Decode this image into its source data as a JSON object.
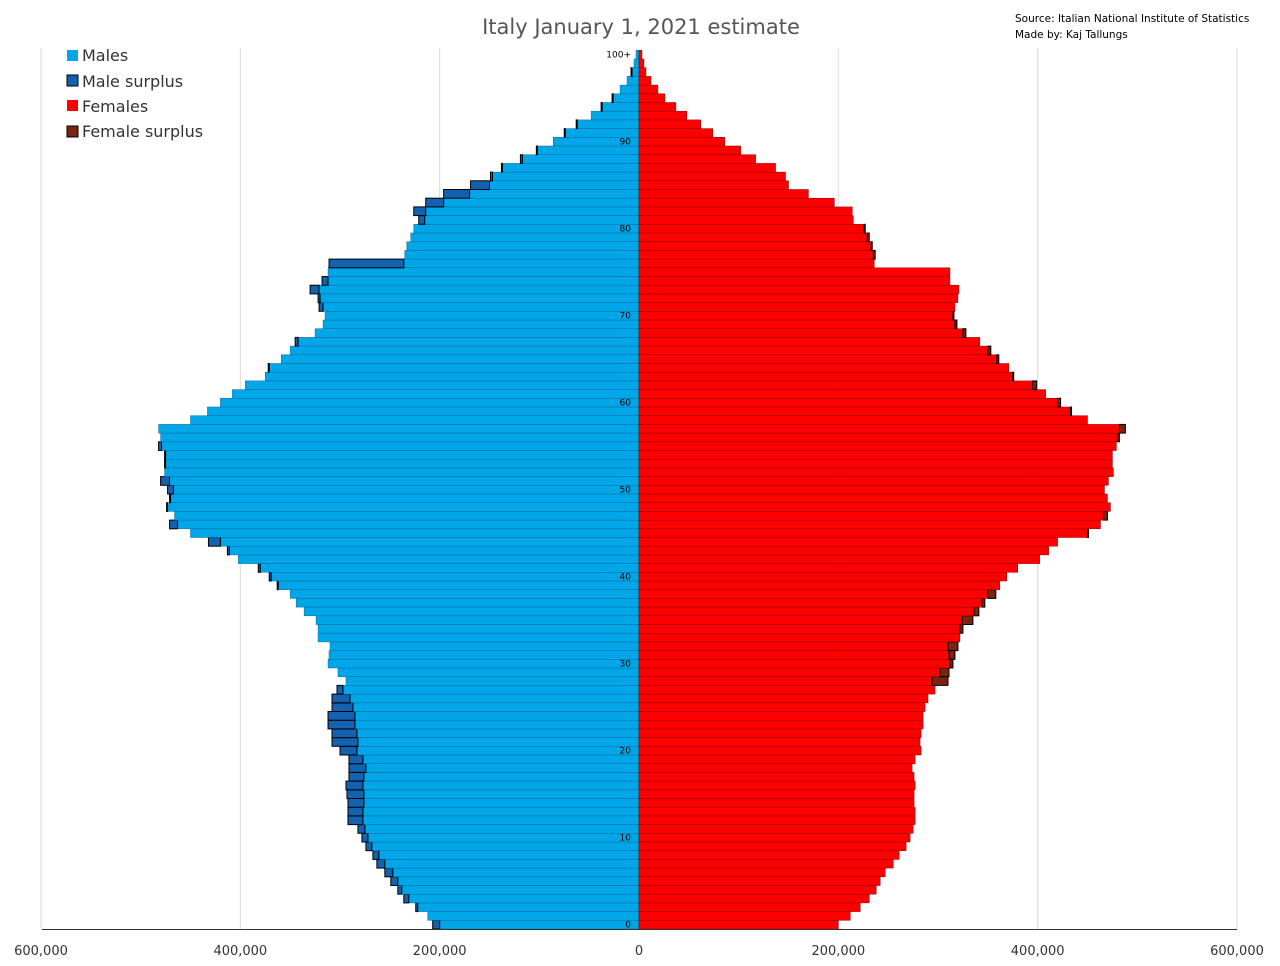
{
  "chart_data": {
    "type": "bar",
    "orientation": "horizontal-population-pyramid",
    "title": "Italy January 1, 2021 estimate",
    "source_line": "Source: Italian National Institute of Statistics",
    "author_line": "Made by: Kaj Tallungs",
    "legend": {
      "placement": "top-left",
      "items": [
        {
          "label": "Males",
          "color": "#00a6e8"
        },
        {
          "label": "Male surplus",
          "color": "#1262b0"
        },
        {
          "label": "Females",
          "color": "#ff0000"
        },
        {
          "label": "Female surplus",
          "color": "#7a2510"
        }
      ]
    },
    "x_ticks": [
      {
        "label": "600,000"
      },
      {
        "label": "400,000"
      },
      {
        "label": "200,000"
      },
      {
        "label": "0"
      },
      {
        "label": "200,000"
      },
      {
        "label": "400,000"
      },
      {
        "label": "600,000"
      }
    ],
    "x_tick_values": [
      -600000,
      -400000,
      -200000,
      0,
      200000,
      400000,
      600000
    ],
    "xlim": [
      -600000,
      600000
    ],
    "y_ticks": [
      {
        "label": "0",
        "age": 0
      },
      {
        "label": "10",
        "age": 10
      },
      {
        "label": "20",
        "age": 20
      },
      {
        "label": "30",
        "age": 30
      },
      {
        "label": "40",
        "age": 40
      },
      {
        "label": "50",
        "age": 50
      },
      {
        "label": "60",
        "age": 60
      },
      {
        "label": "70",
        "age": 70
      },
      {
        "label": "80",
        "age": 80
      },
      {
        "label": "90",
        "age": 90
      },
      {
        "label": "100+",
        "age": 100
      }
    ],
    "grid": true,
    "ages": [
      0,
      1,
      2,
      3,
      4,
      5,
      6,
      7,
      8,
      9,
      10,
      11,
      12,
      13,
      14,
      15,
      16,
      17,
      18,
      19,
      20,
      21,
      22,
      23,
      24,
      25,
      26,
      27,
      28,
      29,
      30,
      31,
      32,
      33,
      34,
      35,
      36,
      37,
      38,
      39,
      40,
      41,
      42,
      43,
      44,
      45,
      46,
      47,
      48,
      49,
      50,
      51,
      52,
      53,
      54,
      55,
      56,
      57,
      58,
      59,
      60,
      61,
      62,
      63,
      64,
      65,
      66,
      67,
      68,
      69,
      70,
      71,
      72,
      73,
      74,
      75,
      76,
      77,
      78,
      79,
      80,
      81,
      82,
      83,
      84,
      85,
      86,
      87,
      88,
      89,
      90,
      91,
      92,
      93,
      94,
      95,
      96,
      97,
      98,
      99,
      100
    ],
    "males": [
      207000,
      212000,
      224000,
      236000,
      242000,
      249000,
      255000,
      263000,
      267000,
      274000,
      278000,
      282000,
      292000,
      292000,
      292000,
      293000,
      294000,
      291000,
      291000,
      291000,
      300000,
      308000,
      308000,
      312000,
      312000,
      308000,
      308000,
      303000,
      294000,
      302000,
      312000,
      311000,
      310000,
      322000,
      322000,
      324000,
      336000,
      344000,
      350000,
      363000,
      371000,
      382000,
      402000,
      413000,
      432000,
      450000,
      471000,
      466000,
      474000,
      471000,
      473000,
      480000,
      476000,
      476000,
      476000,
      482000,
      480000,
      482000,
      450000,
      433000,
      420000,
      408000,
      395000,
      375000,
      372000,
      359000,
      350000,
      345000,
      325000,
      317000,
      315000,
      321000,
      322000,
      330000,
      318000,
      312000,
      311000,
      235000,
      233000,
      229000,
      226000,
      221000,
      226000,
      214000,
      196000,
      169000,
      149000,
      138000,
      119000,
      103000,
      86000,
      75000,
      63000,
      48000,
      38000,
      27000,
      19000,
      12000,
      8000,
      5000,
      3000
    ],
    "females": [
      200000,
      212000,
      222000,
      231000,
      238000,
      242000,
      247000,
      255000,
      261000,
      268000,
      272000,
      275000,
      277000,
      277000,
      276000,
      276000,
      277000,
      276000,
      274000,
      277000,
      283000,
      282000,
      283000,
      285000,
      285000,
      287000,
      290000,
      297000,
      310000,
      311000,
      315000,
      317000,
      320000,
      322000,
      325000,
      335000,
      341000,
      347000,
      358000,
      362000,
      369000,
      380000,
      402000,
      411000,
      420000,
      451000,
      463000,
      470000,
      473000,
      470000,
      467000,
      471000,
      476000,
      475000,
      475000,
      479000,
      482000,
      488000,
      450000,
      434000,
      423000,
      408000,
      399000,
      376000,
      371000,
      361000,
      353000,
      342000,
      328000,
      319000,
      316000,
      317000,
      320000,
      321000,
      312000,
      312000,
      236000,
      237000,
      234000,
      231000,
      227000,
      215000,
      214000,
      196000,
      170000,
      150000,
      147000,
      137000,
      117000,
      102000,
      86000,
      74000,
      62000,
      48000,
      37000,
      26000,
      19000,
      12000,
      7000,
      5000,
      3000
    ],
    "series": [
      {
        "name": "Males",
        "values_key": "males"
      },
      {
        "name": "Females",
        "values_key": "females"
      }
    ]
  }
}
